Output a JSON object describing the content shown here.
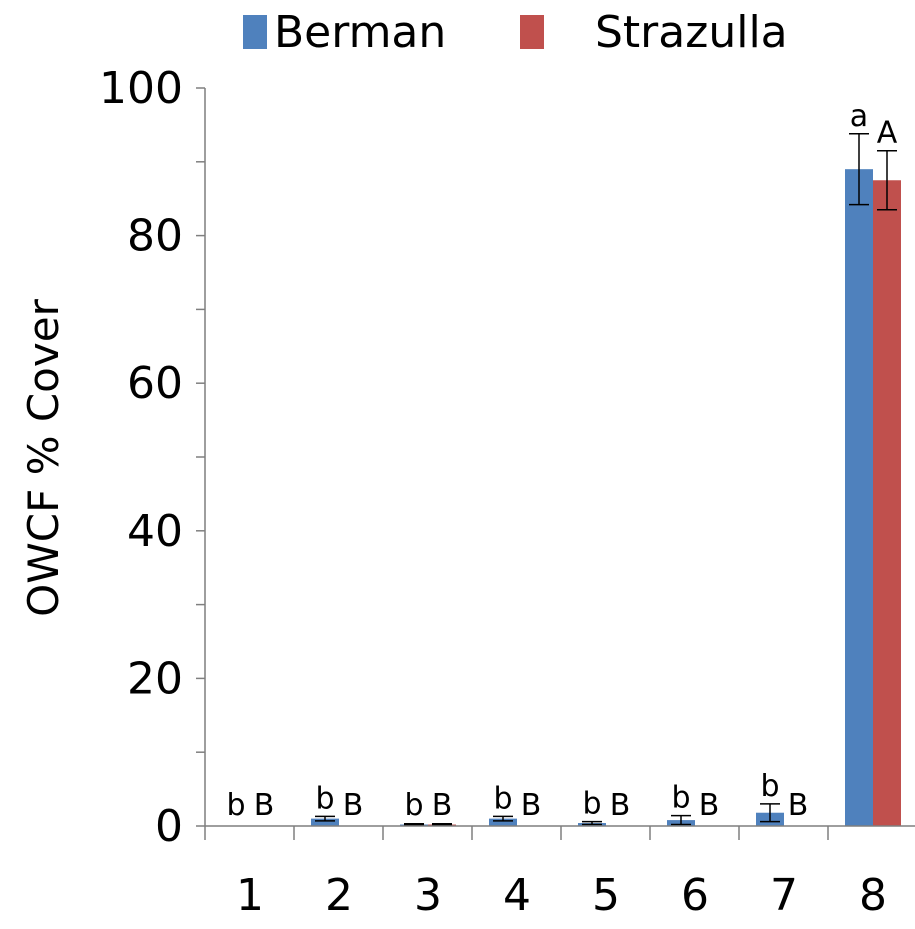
{
  "chart_data": {
    "type": "bar",
    "ylabel": "OWCF % Cover",
    "ylim": [
      0,
      100
    ],
    "y_major_ticks": [
      0,
      20,
      40,
      60,
      80,
      100
    ],
    "y_tick_labels": [
      "0",
      "20",
      "40",
      "60",
      "80",
      "100"
    ],
    "y_minor_step": 10,
    "grid": false,
    "legend_position": "top",
    "categories": [
      "1",
      "2",
      "3",
      "4",
      "5",
      "6",
      "7",
      "8"
    ],
    "series": [
      {
        "name": "Berman",
        "color": "#4f81bd",
        "values": [
          0.0,
          1.0,
          0.2,
          1.0,
          0.4,
          0.8,
          1.8,
          89.0
        ],
        "errors": [
          0.0,
          0.3,
          0.1,
          0.3,
          0.2,
          0.6,
          1.2,
          4.8
        ],
        "letters": [
          "b",
          "b",
          "b",
          "b",
          "b",
          "b",
          "b",
          "a"
        ]
      },
      {
        "name": "Strazulla",
        "color": "#c0504d",
        "values": [
          0.0,
          0.0,
          0.2,
          0.0,
          0.0,
          0.0,
          0.0,
          87.5
        ],
        "errors": [
          0.0,
          0.0,
          0.1,
          0.0,
          0.0,
          0.0,
          0.0,
          4.0
        ],
        "letters": [
          "B",
          "B",
          "B",
          "B",
          "B",
          "B",
          "B",
          "A"
        ]
      }
    ]
  }
}
